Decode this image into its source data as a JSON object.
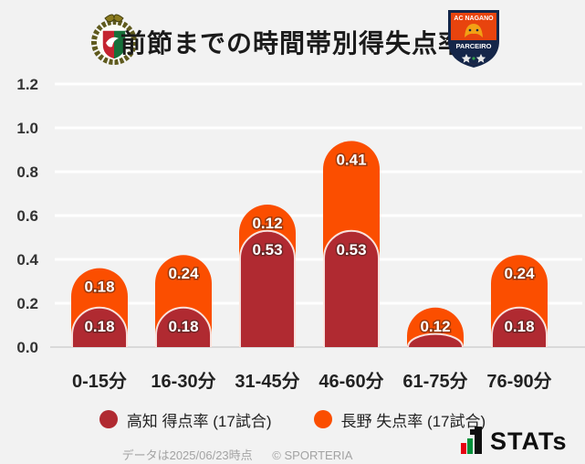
{
  "header": {
    "title": "前節までの時間帯別得失点率",
    "nagano_logo_text_top": "AC NAGANO",
    "nagano_logo_text_bottom": "PARCEIRO"
  },
  "chart_data": {
    "type": "bar",
    "stacked": true,
    "title": "前節までの時間帯別得失点率",
    "categories": [
      "0-15分",
      "16-30分",
      "31-45分",
      "46-60分",
      "61-75分",
      "76-90分"
    ],
    "series": [
      {
        "name": "高知 得点率 (17試合)",
        "color": "#b02a31",
        "values": [
          0.18,
          0.18,
          0.53,
          0.53,
          0.06,
          0.18
        ],
        "labels": [
          "0.18",
          "0.18",
          "0.53",
          "0.53",
          null,
          "0.18"
        ]
      },
      {
        "name": "長野 失点率 (17試合)",
        "color": "#fb4e00",
        "values": [
          0.18,
          0.24,
          0.12,
          0.41,
          0.12,
          0.24
        ],
        "labels": [
          "0.18",
          "0.24",
          "0.12",
          "0.41",
          "0.12",
          "0.24"
        ]
      }
    ],
    "xlabel": "",
    "ylabel": "",
    "ylim": [
      0,
      1.2
    ],
    "yticks": [
      "0.0",
      "0.2",
      "0.4",
      "0.6",
      "0.8",
      "1.0",
      "1.2"
    ],
    "grid": true,
    "legend_position": "bottom",
    "background": "#f2f2f2",
    "gridline_color": "#ffffff",
    "baseline_color": "#d9d9d9"
  },
  "legend": {
    "items": [
      {
        "label": "高知 得点率 (17試合)",
        "color": "#b02a31"
      },
      {
        "label": "長野 失点率 (17試合)",
        "color": "#fb4e00"
      }
    ]
  },
  "footer": {
    "note": "データは2025/06/23時点",
    "copyright": "© SPORTERIA",
    "brand": "STATs"
  }
}
